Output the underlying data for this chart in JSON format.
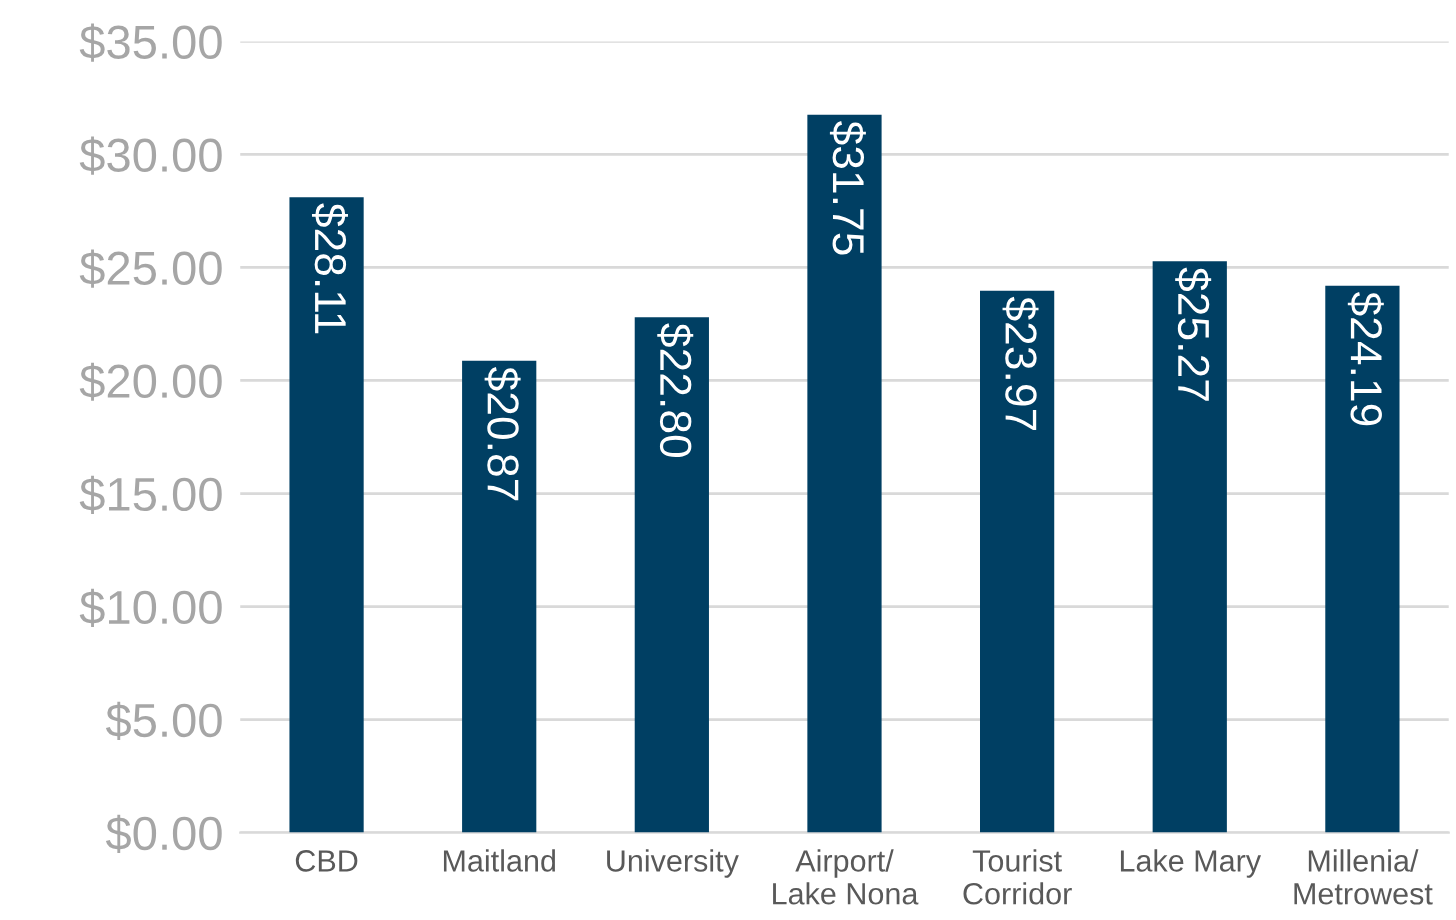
{
  "chart_data": {
    "type": "bar",
    "categories": [
      "CBD",
      "Maitland",
      "University",
      "Airport/\nLake Nona",
      "Tourist\nCorridor",
      "Lake Mary",
      "Millenia/\nMetrowest"
    ],
    "values": [
      28.11,
      20.87,
      22.8,
      31.75,
      23.97,
      25.27,
      24.19
    ],
    "value_labels": [
      "$28.11",
      "$20.87",
      "$22.80",
      "$31.75",
      "$23.97",
      "$25.27",
      "$24.19"
    ],
    "color": "#003f63",
    "ylim": [
      0,
      35
    ],
    "yticks": [
      {
        "value": 0,
        "label": "$0.00"
      },
      {
        "value": 5,
        "label": "$5.00"
      },
      {
        "value": 10,
        "label": "$10.00"
      },
      {
        "value": 15,
        "label": "$15.00"
      },
      {
        "value": 20,
        "label": "$20.00"
      },
      {
        "value": 25,
        "label": "$25.00"
      },
      {
        "value": 30,
        "label": "$30.00"
      },
      {
        "value": 35,
        "label": "$35.00"
      }
    ],
    "grid": "y"
  }
}
